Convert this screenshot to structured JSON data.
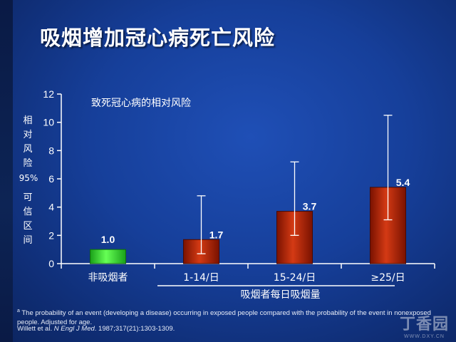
{
  "slide": {
    "title": "吸烟增加冠心病死亡风险"
  },
  "chart_data": {
    "type": "bar",
    "title": "致死冠心病的相对风险",
    "ylabel_chars": [
      "相",
      "对",
      "风",
      "险"
    ],
    "ylabel_pct": "95%",
    "ylabel_chars2": [
      "可",
      "信",
      "区",
      "间"
    ],
    "xlabel": "吸烟者每日吸烟量",
    "categories": [
      "非吸烟者",
      "1-14/日",
      "15-24/日",
      "≥25/日"
    ],
    "values": [
      1.0,
      1.7,
      3.7,
      5.4
    ],
    "value_labels": [
      "1.0",
      "1.7",
      "3.7",
      "5.4"
    ],
    "ci_low": [
      null,
      0.7,
      2.0,
      3.1
    ],
    "ci_high": [
      null,
      4.8,
      7.2,
      10.5
    ],
    "ylim": [
      0,
      12
    ],
    "yticks": [
      0,
      2,
      4,
      6,
      8,
      10,
      12
    ],
    "colors": {
      "reference": "#33dd33",
      "smoker": "#b01e00",
      "errorbar": "#ffffff"
    }
  },
  "footnote": {
    "marker": "a",
    "text": "The probability of an event (developing a disease) occurring in exposed people compared with the probability of the event in nonexposed people. Adjusted for age.",
    "ref_authors": "Willett et al.",
    "ref_journal": "N Engl J Med",
    "ref_rest": ". 1987;317(21):1303-1309."
  },
  "watermark": {
    "logo": "丁香园",
    "url": "WWW.DXY.CN"
  }
}
